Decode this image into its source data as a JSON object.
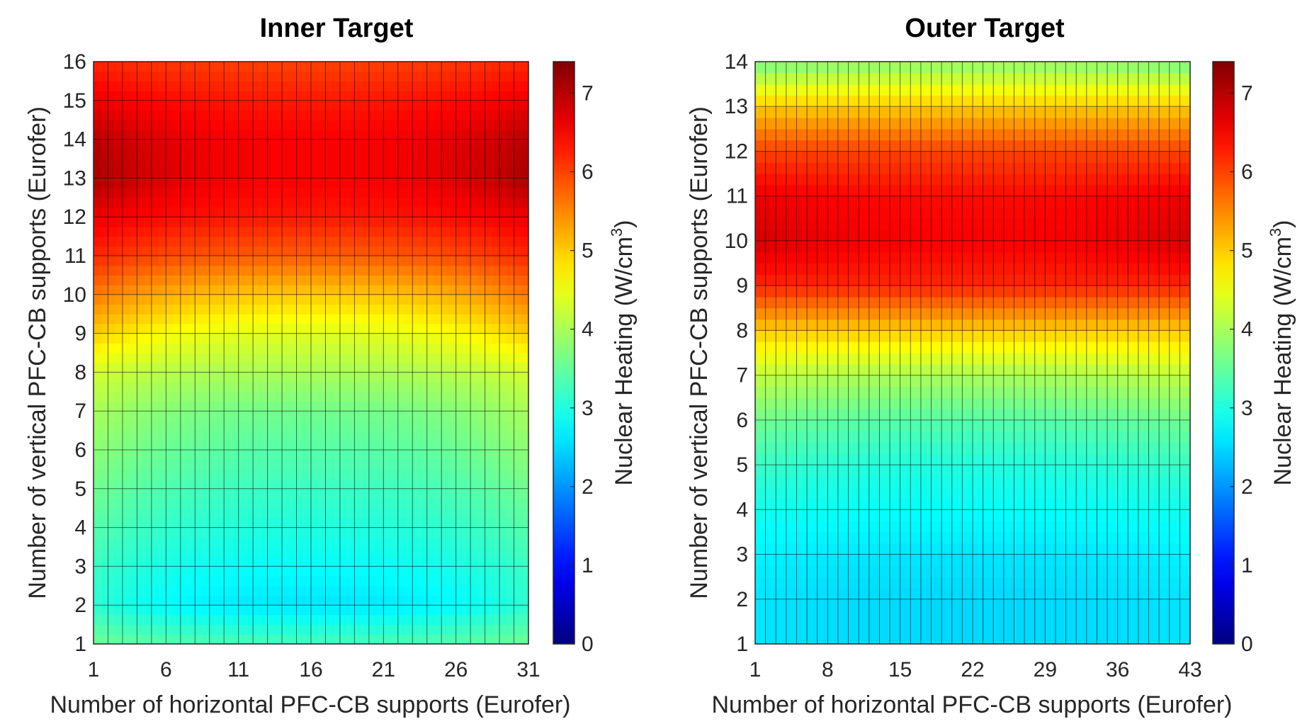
{
  "chart_data": [
    {
      "type": "heatmap",
      "title": "Inner Target",
      "xlabel": "Number of horizontal PFC-CB supports (Eurofer)",
      "ylabel": "Number of vertical PFC-CB supports (Eurofer)",
      "x_range": [
        1,
        31
      ],
      "y_range": [
        1,
        16
      ],
      "x_ticks": [
        "1",
        "6",
        "11",
        "16",
        "21",
        "26",
        "31"
      ],
      "y_ticks": [
        "1",
        "2",
        "3",
        "4",
        "5",
        "6",
        "7",
        "8",
        "9",
        "10",
        "11",
        "12",
        "13",
        "14",
        "15",
        "16"
      ],
      "colorbar": {
        "label": "Nuclear Heating (W/cm",
        "label_sup": "3",
        "label_end": ")",
        "range": [
          0,
          7.4
        ],
        "ticks": [
          "0",
          "1",
          "2",
          "3",
          "4",
          "5",
          "6",
          "7"
        ]
      },
      "row_profile_center": [
        {
          "y": 1,
          "v": 3.3
        },
        {
          "y": 2,
          "v": 2.6
        },
        {
          "y": 3,
          "v": 2.8
        },
        {
          "y": 4,
          "v": 3.0
        },
        {
          "y": 5,
          "v": 3.2
        },
        {
          "y": 6,
          "v": 3.4
        },
        {
          "y": 7,
          "v": 3.6
        },
        {
          "y": 8,
          "v": 4.0
        },
        {
          "y": 9,
          "v": 4.4
        },
        {
          "y": 10,
          "v": 5.0
        },
        {
          "y": 11,
          "v": 5.8
        },
        {
          "y": 12,
          "v": 6.3
        },
        {
          "y": 13,
          "v": 6.5
        },
        {
          "y": 14,
          "v": 6.5
        },
        {
          "y": 15,
          "v": 6.3
        },
        {
          "y": 16,
          "v": 6.0
        }
      ],
      "row_profile_edge": [
        {
          "y": 1,
          "v": 3.6
        },
        {
          "y": 2,
          "v": 3.1
        },
        {
          "y": 3,
          "v": 3.2
        },
        {
          "y": 4,
          "v": 3.4
        },
        {
          "y": 5,
          "v": 3.6
        },
        {
          "y": 6,
          "v": 3.8
        },
        {
          "y": 7,
          "v": 4.0
        },
        {
          "y": 8,
          "v": 4.3
        },
        {
          "y": 9,
          "v": 5.0
        },
        {
          "y": 10,
          "v": 5.6
        },
        {
          "y": 11,
          "v": 6.2
        },
        {
          "y": 12,
          "v": 6.6
        },
        {
          "y": 13,
          "v": 7.1
        },
        {
          "y": 14,
          "v": 7.0
        },
        {
          "y": 15,
          "v": 6.6
        },
        {
          "y": 16,
          "v": 6.2
        }
      ]
    },
    {
      "type": "heatmap",
      "title": "Outer Target",
      "xlabel": "Number of horizontal PFC-CB supports (Eurofer)",
      "ylabel": "Number of vertical PFC-CB supports (Eurofer)",
      "x_range": [
        1,
        43
      ],
      "y_range": [
        1,
        14
      ],
      "x_ticks": [
        "1",
        "8",
        "15",
        "22",
        "29",
        "36",
        "43"
      ],
      "y_ticks": [
        "1",
        "2",
        "3",
        "4",
        "5",
        "6",
        "7",
        "8",
        "9",
        "10",
        "11",
        "12",
        "13",
        "14"
      ],
      "colorbar": {
        "label": "Nuclear Heating (W/cm",
        "label_sup": "3",
        "label_end": ")",
        "range": [
          0,
          7.4
        ],
        "ticks": [
          "0",
          "1",
          "2",
          "3",
          "4",
          "5",
          "6",
          "7"
        ]
      },
      "row_profile_center": [
        {
          "y": 1,
          "v": 2.5
        },
        {
          "y": 2,
          "v": 2.5
        },
        {
          "y": 3,
          "v": 2.6
        },
        {
          "y": 4,
          "v": 2.8
        },
        {
          "y": 5,
          "v": 3.0
        },
        {
          "y": 6,
          "v": 3.4
        },
        {
          "y": 7,
          "v": 4.0
        },
        {
          "y": 8,
          "v": 5.0
        },
        {
          "y": 9,
          "v": 6.2
        },
        {
          "y": 10,
          "v": 6.5
        },
        {
          "y": 11,
          "v": 6.4
        },
        {
          "y": 12,
          "v": 6.0
        },
        {
          "y": 13,
          "v": 5.0
        },
        {
          "y": 14,
          "v": 3.8
        }
      ],
      "row_profile_edge": [
        {
          "y": 1,
          "v": 2.6
        },
        {
          "y": 2,
          "v": 2.6
        },
        {
          "y": 3,
          "v": 2.7
        },
        {
          "y": 4,
          "v": 2.9
        },
        {
          "y": 5,
          "v": 3.2
        },
        {
          "y": 6,
          "v": 3.6
        },
        {
          "y": 7,
          "v": 4.2
        },
        {
          "y": 8,
          "v": 5.0
        },
        {
          "y": 9,
          "v": 6.2
        },
        {
          "y": 10,
          "v": 6.8
        },
        {
          "y": 11,
          "v": 6.6
        },
        {
          "y": 12,
          "v": 6.0
        },
        {
          "y": 13,
          "v": 5.0
        },
        {
          "y": 14,
          "v": 3.6
        }
      ]
    }
  ]
}
